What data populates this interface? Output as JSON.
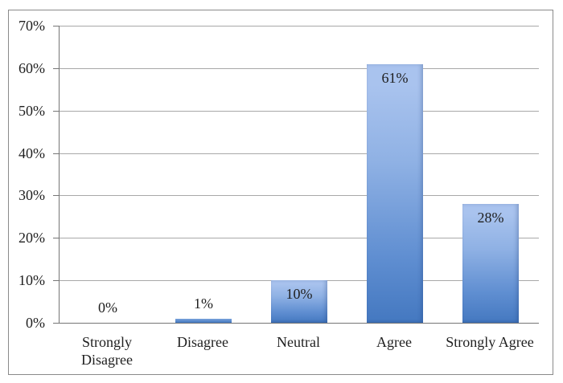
{
  "chart_data": {
    "type": "bar",
    "title": "",
    "xlabel": "",
    "ylabel": "",
    "categories": [
      "Strongly Disagree",
      "Disagree",
      "Neutral",
      "Agree",
      "Strongly Agree"
    ],
    "values": [
      0,
      1,
      10,
      61,
      28
    ],
    "data_labels": [
      "0%",
      "1%",
      "10%",
      "61%",
      "28%"
    ],
    "y_ticks": [
      {
        "label": "0%",
        "value": 0
      },
      {
        "label": "10%",
        "value": 10
      },
      {
        "label": "20%",
        "value": 20
      },
      {
        "label": "30%",
        "value": 30
      },
      {
        "label": "40%",
        "value": 40
      },
      {
        "label": "50%",
        "value": 50
      },
      {
        "label": "60%",
        "value": 60
      },
      {
        "label": "70%",
        "value": 70
      }
    ],
    "ylim": [
      0,
      70
    ],
    "grid": true,
    "legend": false,
    "label_position_rule": "inside-end for bars >= 5%, outside-end above baseline for smaller",
    "colors": {
      "background": "#ffffff",
      "border": "#8a8a8a",
      "axis_line": "#767676",
      "gridline": "#a8a8a8",
      "text": "#1f1f1f",
      "bar_gradient_top": "#a9c3ee",
      "bar_gradient_bottom": "#4478c0",
      "small_bar_top": "#7aa3dc",
      "small_bar_bottom": "#4075bd"
    }
  }
}
